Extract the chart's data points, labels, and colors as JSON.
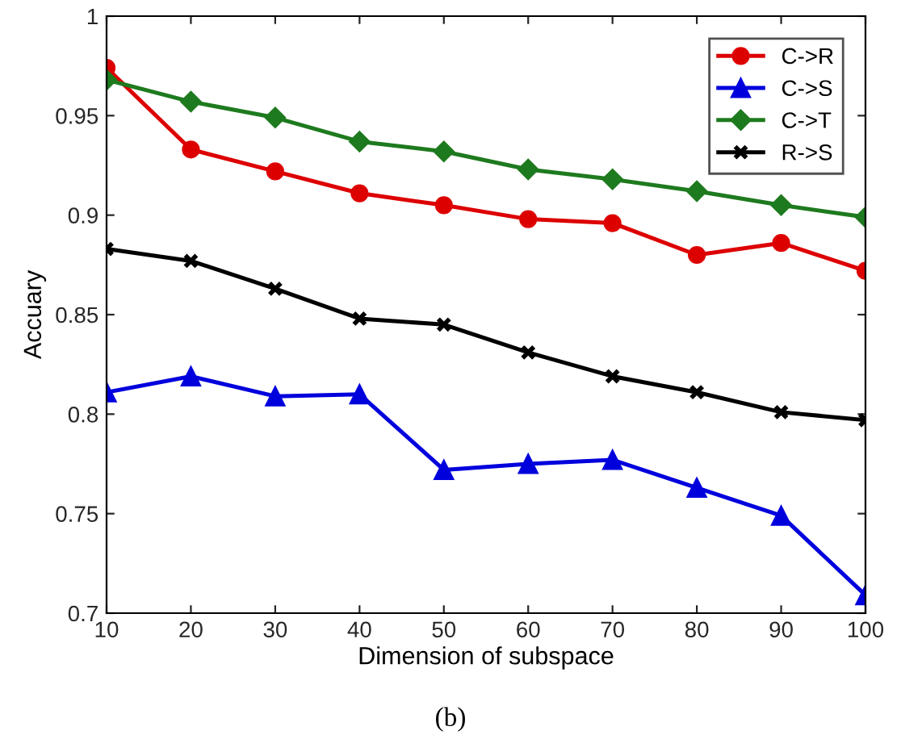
{
  "chart_data": {
    "type": "line",
    "xlabel": "Dimension of subspace",
    "ylabel": "Accuary",
    "x": [
      10,
      20,
      30,
      40,
      50,
      60,
      70,
      80,
      90,
      100
    ],
    "series": [
      {
        "name": "C->R",
        "color": "#dd0000",
        "marker": "circle",
        "values": [
          0.974,
          0.933,
          0.922,
          0.911,
          0.905,
          0.898,
          0.896,
          0.88,
          0.886,
          0.872
        ]
      },
      {
        "name": "C->S",
        "color": "#0000dd",
        "marker": "triangle",
        "values": [
          0.811,
          0.819,
          0.809,
          0.81,
          0.772,
          0.775,
          0.777,
          0.763,
          0.749,
          0.709
        ]
      },
      {
        "name": "C->T",
        "color": "#1e7a1e",
        "marker": "diamond",
        "values": [
          0.968,
          0.957,
          0.949,
          0.937,
          0.932,
          0.923,
          0.918,
          0.912,
          0.905,
          0.899
        ]
      },
      {
        "name": "R->S",
        "color": "#000000",
        "marker": "cross",
        "values": [
          0.883,
          0.877,
          0.863,
          0.848,
          0.845,
          0.831,
          0.819,
          0.811,
          0.801,
          0.797
        ]
      }
    ],
    "xlim": [
      10,
      100
    ],
    "xticks": [
      10,
      20,
      30,
      40,
      50,
      60,
      70,
      80,
      90,
      100
    ],
    "ylim": [
      0.7,
      1
    ],
    "yticks": [
      {
        "value": 0.7,
        "label": "0.7"
      },
      {
        "value": 0.75,
        "label": "0.75"
      },
      {
        "value": 0.8,
        "label": "0.8"
      },
      {
        "value": 0.85,
        "label": "0.85"
      },
      {
        "value": 0.9,
        "label": "0.9"
      },
      {
        "value": 0.95,
        "label": "0.95"
      },
      {
        "value": 1,
        "label": "1"
      }
    ],
    "grid": false,
    "legend": "top right",
    "line_style": "solid",
    "annotations": [
      "(b)"
    ]
  }
}
